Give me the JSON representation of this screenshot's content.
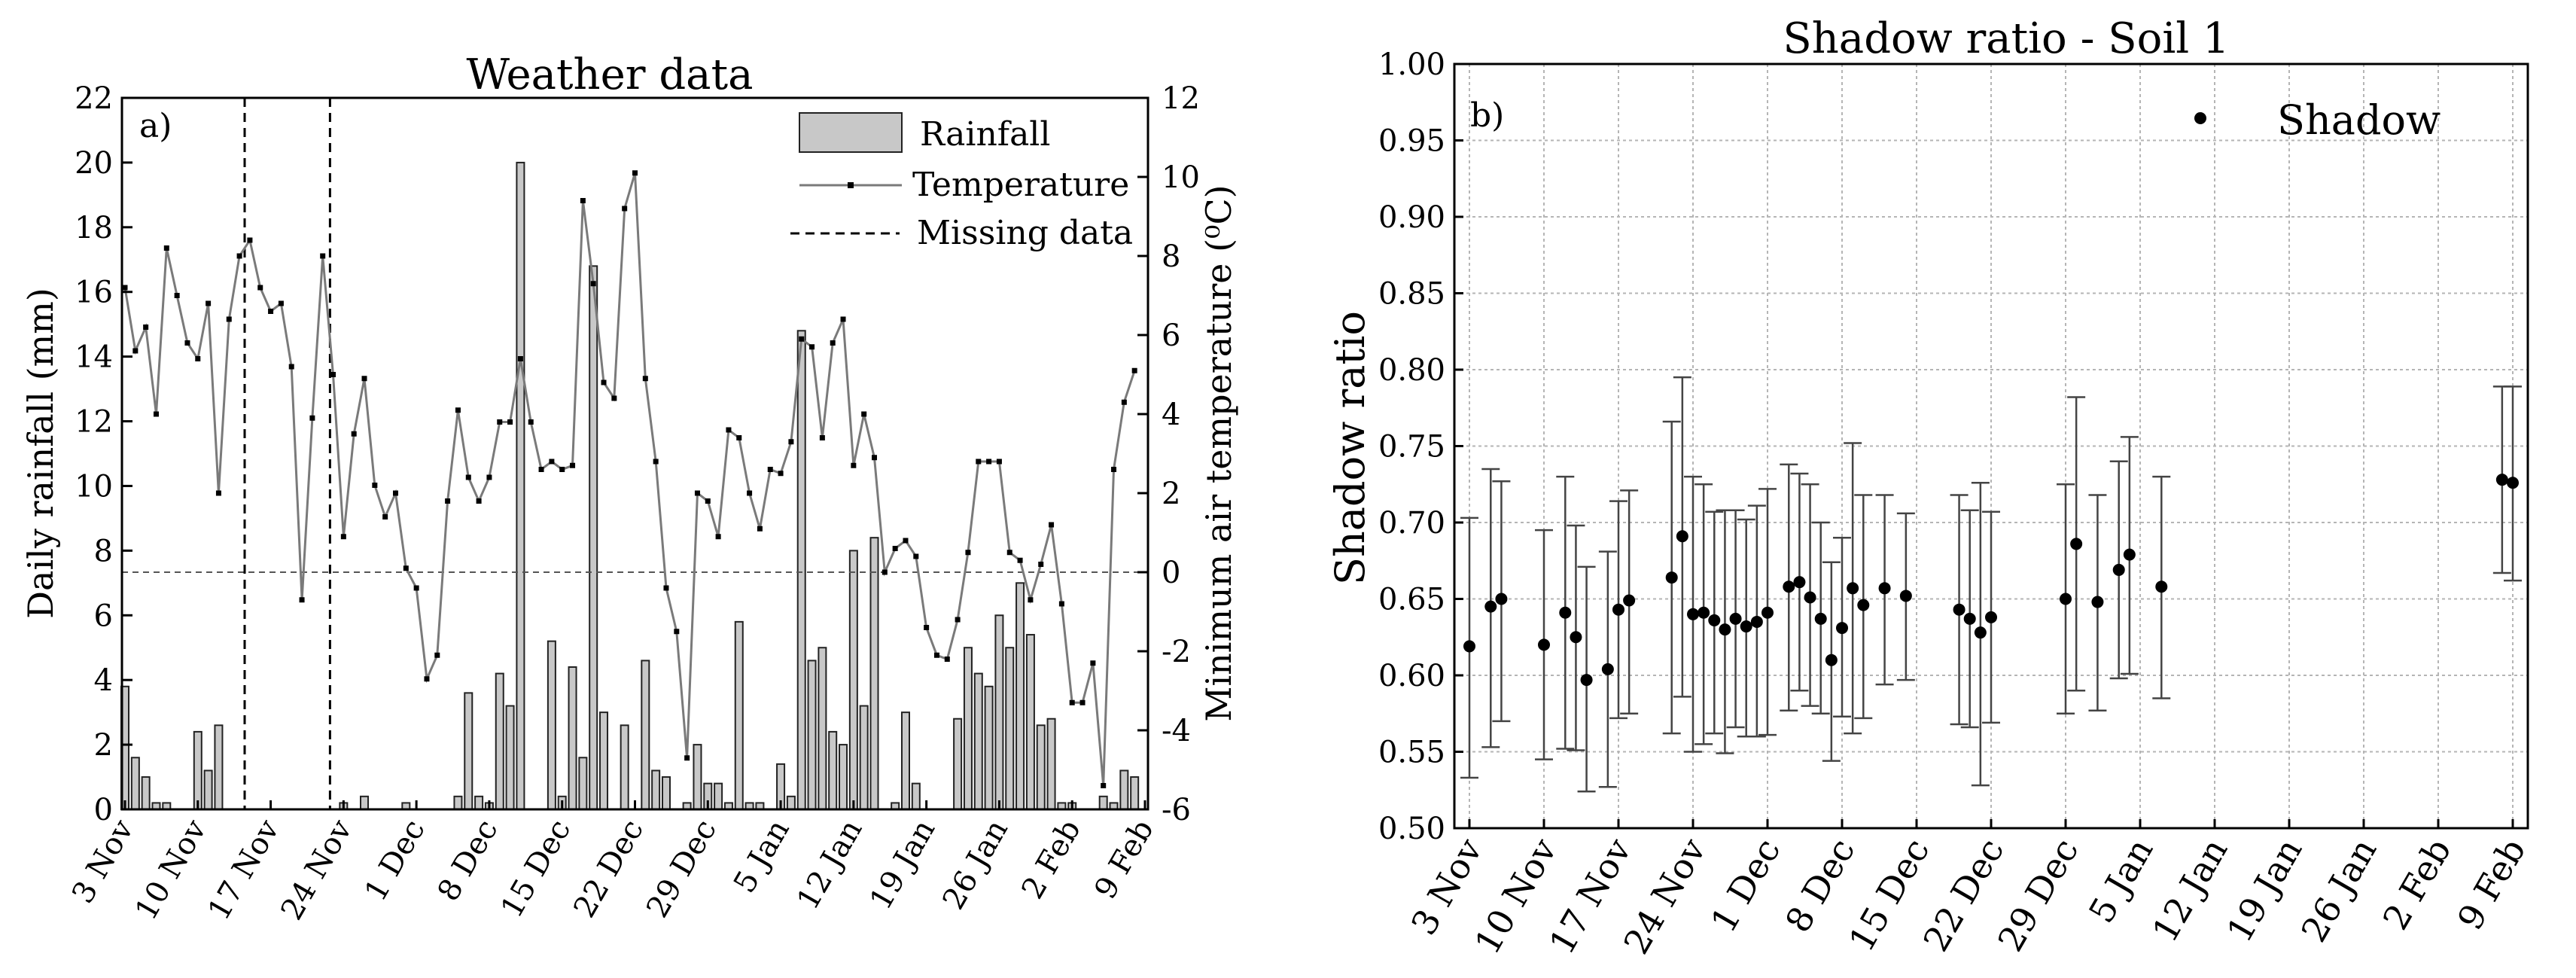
{
  "chart_data": [
    {
      "type": "bar+line",
      "title": "Weather data",
      "panel_label": "a)",
      "ylabel_left": "Daily rainfall (mm)",
      "ylabel_right": "Minimum air temperature (⁰C)",
      "ylim_left": [
        0,
        22
      ],
      "ylim_right": [
        -6,
        12
      ],
      "yticks_left": [
        "0",
        "2",
        "4",
        "6",
        "8",
        "10",
        "12",
        "14",
        "16",
        "18",
        "20",
        "22"
      ],
      "yticks_right": [
        "-6",
        "-4",
        "-2",
        "0",
        "2",
        "4",
        "6",
        "8",
        "10",
        "12"
      ],
      "x_days": 98,
      "xtick_days": [
        0,
        7,
        14,
        21,
        28,
        35,
        42,
        49,
        56,
        63,
        70,
        77,
        84,
        91,
        98
      ],
      "xtick_labels": [
        "3 Nov",
        "10 Nov",
        "17 Nov",
        "24 Nov",
        "1 Dec",
        "8 Dec",
        "15 Dec",
        "22 Dec",
        "29 Dec",
        "5 Jan",
        "12 Jan",
        "19 Jan",
        "26 Jan",
        "2 Feb",
        "9 Feb"
      ],
      "legend": {
        "rainfall": "Rainfall",
        "temperature": "Temperature",
        "missing": "Missing data",
        "position": "top-right"
      },
      "missing_data_days": [
        11.5,
        19.7
      ],
      "rainfall": [
        {
          "day": 0,
          "mm": 3.8
        },
        {
          "day": 1,
          "mm": 1.6
        },
        {
          "day": 2,
          "mm": 1.0
        },
        {
          "day": 3,
          "mm": 0.2
        },
        {
          "day": 4,
          "mm": 0.2
        },
        {
          "day": 7,
          "mm": 2.4
        },
        {
          "day": 8,
          "mm": 1.2
        },
        {
          "day": 9,
          "mm": 2.6
        },
        {
          "day": 21,
          "mm": 0.2
        },
        {
          "day": 23,
          "mm": 0.4
        },
        {
          "day": 27,
          "mm": 0.2
        },
        {
          "day": 32,
          "mm": 0.4
        },
        {
          "day": 33,
          "mm": 3.6
        },
        {
          "day": 34,
          "mm": 0.4
        },
        {
          "day": 35,
          "mm": 0.2
        },
        {
          "day": 36,
          "mm": 4.2
        },
        {
          "day": 37,
          "mm": 3.2
        },
        {
          "day": 38,
          "mm": 20.0
        },
        {
          "day": 41,
          "mm": 5.2
        },
        {
          "day": 42,
          "mm": 0.4
        },
        {
          "day": 43,
          "mm": 4.4
        },
        {
          "day": 44,
          "mm": 1.6
        },
        {
          "day": 45,
          "mm": 16.8
        },
        {
          "day": 46,
          "mm": 3.0
        },
        {
          "day": 48,
          "mm": 2.6
        },
        {
          "day": 50,
          "mm": 4.6
        },
        {
          "day": 51,
          "mm": 1.2
        },
        {
          "day": 52,
          "mm": 1.0
        },
        {
          "day": 54,
          "mm": 0.2
        },
        {
          "day": 55,
          "mm": 2.0
        },
        {
          "day": 56,
          "mm": 0.8
        },
        {
          "day": 57,
          "mm": 0.8
        },
        {
          "day": 58,
          "mm": 0.2
        },
        {
          "day": 59,
          "mm": 5.8
        },
        {
          "day": 60,
          "mm": 0.2
        },
        {
          "day": 61,
          "mm": 0.2
        },
        {
          "day": 63,
          "mm": 1.4
        },
        {
          "day": 64,
          "mm": 0.4
        },
        {
          "day": 65,
          "mm": 14.8
        },
        {
          "day": 66,
          "mm": 4.6
        },
        {
          "day": 67,
          "mm": 5.0
        },
        {
          "day": 68,
          "mm": 2.4
        },
        {
          "day": 69,
          "mm": 2.0
        },
        {
          "day": 70,
          "mm": 8.0
        },
        {
          "day": 71,
          "mm": 3.2
        },
        {
          "day": 72,
          "mm": 8.4
        },
        {
          "day": 74,
          "mm": 0.2
        },
        {
          "day": 75,
          "mm": 3.0
        },
        {
          "day": 76,
          "mm": 0.8
        },
        {
          "day": 80,
          "mm": 2.8
        },
        {
          "day": 81,
          "mm": 5.0
        },
        {
          "day": 82,
          "mm": 4.2
        },
        {
          "day": 83,
          "mm": 3.8
        },
        {
          "day": 84,
          "mm": 6.0
        },
        {
          "day": 85,
          "mm": 5.0
        },
        {
          "day": 86,
          "mm": 7.0
        },
        {
          "day": 87,
          "mm": 5.4
        },
        {
          "day": 88,
          "mm": 2.6
        },
        {
          "day": 89,
          "mm": 2.8
        },
        {
          "day": 90,
          "mm": 0.2
        },
        {
          "day": 91,
          "mm": 0.2
        },
        {
          "day": 94,
          "mm": 0.4
        },
        {
          "day": 95,
          "mm": 0.2
        },
        {
          "day": 96,
          "mm": 1.2
        },
        {
          "day": 97,
          "mm": 1.0
        }
      ],
      "temperature": [
        [
          0,
          7.2
        ],
        [
          1,
          5.6
        ],
        [
          2,
          6.2
        ],
        [
          3,
          4.0
        ],
        [
          4,
          8.2
        ],
        [
          5,
          7.0
        ],
        [
          6,
          5.8
        ],
        [
          7,
          5.4
        ],
        [
          8,
          6.8
        ],
        [
          9,
          2.0
        ],
        [
          10,
          6.4
        ],
        [
          11,
          8.0
        ],
        [
          12,
          8.4
        ],
        [
          13,
          7.2
        ],
        [
          14,
          6.6
        ],
        [
          15,
          6.8
        ],
        [
          16,
          5.2
        ],
        [
          17,
          -0.7
        ],
        [
          18,
          3.9
        ],
        [
          19,
          8.0
        ],
        [
          20,
          5.0
        ],
        [
          21,
          0.9
        ],
        [
          22,
          3.5
        ],
        [
          23,
          4.9
        ],
        [
          24,
          2.2
        ],
        [
          25,
          1.4
        ],
        [
          26,
          2.0
        ],
        [
          27,
          0.1
        ],
        [
          28,
          -0.4
        ],
        [
          29,
          -2.7
        ],
        [
          30,
          -2.1
        ],
        [
          31,
          1.8
        ],
        [
          32,
          4.1
        ],
        [
          33,
          2.4
        ],
        [
          34,
          1.8
        ],
        [
          35,
          2.4
        ],
        [
          36,
          3.8
        ],
        [
          37,
          3.8
        ],
        [
          38,
          5.4
        ],
        [
          39,
          3.8
        ],
        [
          40,
          2.6
        ],
        [
          41,
          2.8
        ],
        [
          42,
          2.6
        ],
        [
          43,
          2.7
        ],
        [
          44,
          9.4
        ],
        [
          45,
          7.3
        ],
        [
          46,
          4.8
        ],
        [
          47,
          4.4
        ],
        [
          48,
          9.2
        ],
        [
          49,
          10.1
        ],
        [
          50,
          4.9
        ],
        [
          51,
          2.8
        ],
        [
          52,
          -0.4
        ],
        [
          53,
          -1.5
        ],
        [
          54,
          -4.7
        ],
        [
          55,
          2.0
        ],
        [
          56,
          1.8
        ],
        [
          57,
          0.9
        ],
        [
          58,
          3.6
        ],
        [
          59,
          3.4
        ],
        [
          60,
          2.0
        ],
        [
          61,
          1.1
        ],
        [
          62,
          2.6
        ],
        [
          63,
          2.5
        ],
        [
          64,
          3.3
        ],
        [
          65,
          5.9
        ],
        [
          66,
          5.7
        ],
        [
          67,
          3.4
        ],
        [
          68,
          5.8
        ],
        [
          69,
          6.4
        ],
        [
          70,
          2.7
        ],
        [
          71,
          4.0
        ],
        [
          72,
          2.9
        ],
        [
          73,
          0.0
        ],
        [
          74,
          0.6
        ],
        [
          75,
          0.8
        ],
        [
          76,
          0.4
        ],
        [
          77,
          -1.4
        ],
        [
          78,
          -2.1
        ],
        [
          79,
          -2.2
        ],
        [
          80,
          -1.2
        ],
        [
          81,
          0.5
        ],
        [
          82,
          2.8
        ],
        [
          83,
          2.8
        ],
        [
          84,
          2.8
        ],
        [
          85,
          0.5
        ],
        [
          86,
          0.3
        ],
        [
          87,
          -0.7
        ],
        [
          88,
          0.2
        ],
        [
          89,
          1.2
        ],
        [
          90,
          -0.8
        ],
        [
          91,
          -3.3
        ],
        [
          92,
          -3.3
        ],
        [
          93,
          -2.3
        ],
        [
          94,
          -5.4
        ],
        [
          95,
          2.6
        ],
        [
          96,
          4.3
        ],
        [
          97,
          5.1
        ]
      ]
    },
    {
      "type": "scatter",
      "title": "Shadow ratio - Soil 1",
      "panel_label": "b)",
      "ylabel": "Shadow ratio",
      "ylim": [
        0.5,
        1.0
      ],
      "yticks": [
        "0.50",
        "0.55",
        "0.60",
        "0.65",
        "0.70",
        "0.75",
        "0.80",
        "0.85",
        "0.90",
        "0.95",
        "1.00"
      ],
      "x_days": 98,
      "xtick_days": [
        0,
        7,
        14,
        21,
        28,
        35,
        42,
        49,
        56,
        63,
        70,
        77,
        84,
        91,
        98
      ],
      "xtick_labels": [
        "3 Nov",
        "10 Nov",
        "17 Nov",
        "24 Nov",
        "1 Dec",
        "8 Dec",
        "15 Dec",
        "22 Dec",
        "29 Dec",
        "5 Jan",
        "12 Jan",
        "19 Jan",
        "26 Jan",
        "2 Feb",
        "9 Feb"
      ],
      "legend": {
        "label": "Shadow",
        "position": "top-right"
      },
      "grid": true,
      "points": [
        {
          "day": 0,
          "y": 0.619,
          "lo": 0.533,
          "hi": 0.703
        },
        {
          "day": 2,
          "y": 0.645,
          "lo": 0.553,
          "hi": 0.735
        },
        {
          "day": 3,
          "y": 0.65,
          "lo": 0.57,
          "hi": 0.727
        },
        {
          "day": 7,
          "y": 0.62,
          "lo": 0.545,
          "hi": 0.695
        },
        {
          "day": 9,
          "y": 0.641,
          "lo": 0.552,
          "hi": 0.73
        },
        {
          "day": 10,
          "y": 0.625,
          "lo": 0.551,
          "hi": 0.698
        },
        {
          "day": 11,
          "y": 0.597,
          "lo": 0.524,
          "hi": 0.671
        },
        {
          "day": 13,
          "y": 0.604,
          "lo": 0.527,
          "hi": 0.681
        },
        {
          "day": 14,
          "y": 0.643,
          "lo": 0.572,
          "hi": 0.714
        },
        {
          "day": 15,
          "y": 0.649,
          "lo": 0.575,
          "hi": 0.721
        },
        {
          "day": 19,
          "y": 0.664,
          "lo": 0.562,
          "hi": 0.766
        },
        {
          "day": 20,
          "y": 0.691,
          "lo": 0.586,
          "hi": 0.795
        },
        {
          "day": 21,
          "y": 0.64,
          "lo": 0.55,
          "hi": 0.73
        },
        {
          "day": 22,
          "y": 0.641,
          "lo": 0.555,
          "hi": 0.725
        },
        {
          "day": 23,
          "y": 0.636,
          "lo": 0.562,
          "hi": 0.707
        },
        {
          "day": 24,
          "y": 0.63,
          "lo": 0.549,
          "hi": 0.708
        },
        {
          "day": 25,
          "y": 0.637,
          "lo": 0.566,
          "hi": 0.708
        },
        {
          "day": 26,
          "y": 0.632,
          "lo": 0.56,
          "hi": 0.702
        },
        {
          "day": 27,
          "y": 0.635,
          "lo": 0.56,
          "hi": 0.711
        },
        {
          "day": 28,
          "y": 0.641,
          "lo": 0.561,
          "hi": 0.722
        },
        {
          "day": 30,
          "y": 0.658,
          "lo": 0.577,
          "hi": 0.738
        },
        {
          "day": 31,
          "y": 0.661,
          "lo": 0.59,
          "hi": 0.732
        },
        {
          "day": 32,
          "y": 0.651,
          "lo": 0.58,
          "hi": 0.725
        },
        {
          "day": 33,
          "y": 0.637,
          "lo": 0.575,
          "hi": 0.7
        },
        {
          "day": 34,
          "y": 0.61,
          "lo": 0.544,
          "hi": 0.674
        },
        {
          "day": 35,
          "y": 0.631,
          "lo": 0.573,
          "hi": 0.69
        },
        {
          "day": 36,
          "y": 0.657,
          "lo": 0.562,
          "hi": 0.752
        },
        {
          "day": 37,
          "y": 0.646,
          "lo": 0.572,
          "hi": 0.718
        },
        {
          "day": 39,
          "y": 0.657,
          "lo": 0.594,
          "hi": 0.718
        },
        {
          "day": 41,
          "y": 0.652,
          "lo": 0.597,
          "hi": 0.706
        },
        {
          "day": 46,
          "y": 0.643,
          "lo": 0.568,
          "hi": 0.718
        },
        {
          "day": 47,
          "y": 0.637,
          "lo": 0.566,
          "hi": 0.708
        },
        {
          "day": 48,
          "y": 0.628,
          "lo": 0.528,
          "hi": 0.726
        },
        {
          "day": 49,
          "y": 0.638,
          "lo": 0.569,
          "hi": 0.707
        },
        {
          "day": 56,
          "y": 0.65,
          "lo": 0.575,
          "hi": 0.725
        },
        {
          "day": 57,
          "y": 0.686,
          "lo": 0.59,
          "hi": 0.782
        },
        {
          "day": 59,
          "y": 0.648,
          "lo": 0.577,
          "hi": 0.718
        },
        {
          "day": 61,
          "y": 0.669,
          "lo": 0.598,
          "hi": 0.74
        },
        {
          "day": 62,
          "y": 0.679,
          "lo": 0.601,
          "hi": 0.756
        },
        {
          "day": 65,
          "y": 0.658,
          "lo": 0.585,
          "hi": 0.73
        },
        {
          "day": 97,
          "y": 0.728,
          "lo": 0.667,
          "hi": 0.789
        },
        {
          "day": 98,
          "y": 0.726,
          "lo": 0.662,
          "hi": 0.789
        }
      ]
    }
  ]
}
